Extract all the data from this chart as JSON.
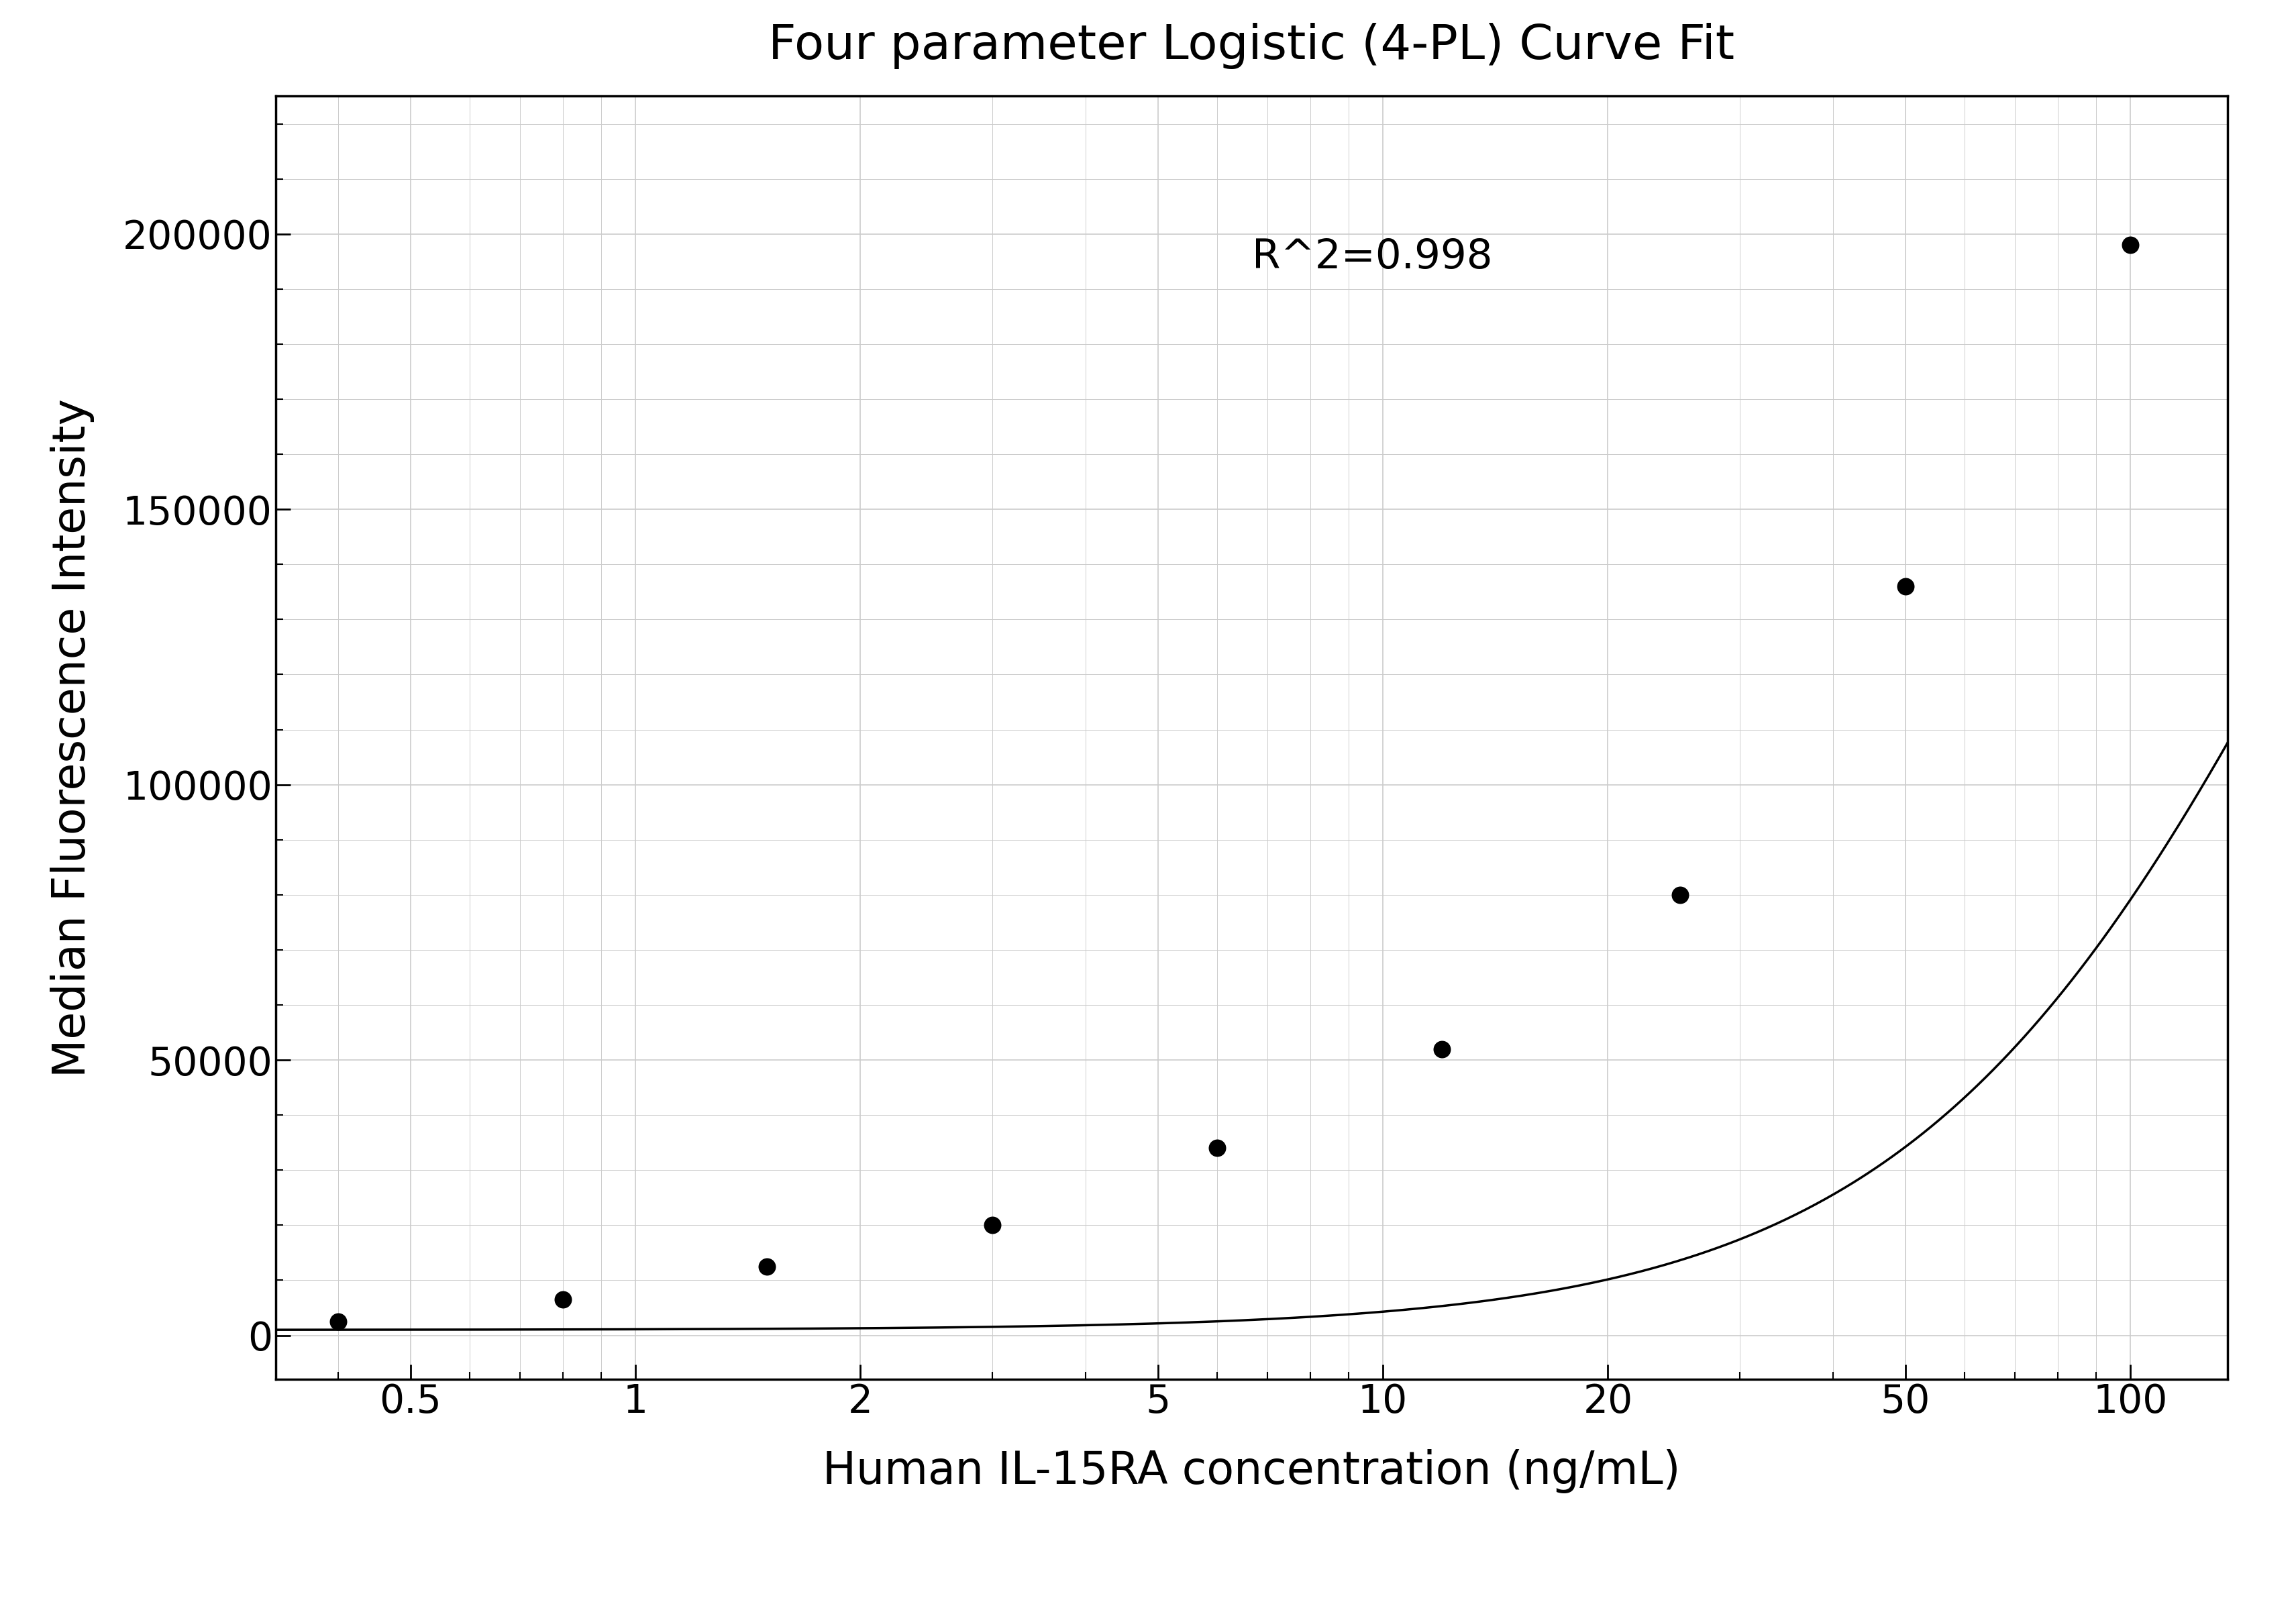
{
  "title": "Four parameter Logistic (4-PL) Curve Fit",
  "xlabel": "Human IL-15RA concentration (ng/mL)",
  "ylabel": "Median Fluorescence Intensity",
  "r_squared": "R^2=0.998",
  "data_x": [
    0.4,
    0.8,
    1.5,
    3.0,
    6.0,
    12.0,
    25.0,
    50.0,
    100.0
  ],
  "data_y": [
    2500,
    6500,
    12500,
    20000,
    34000,
    52000,
    80000,
    136000,
    198000
  ],
  "xlim_log": [
    0.33,
    135
  ],
  "ylim": [
    -8000,
    225000
  ],
  "xticks": [
    0.5,
    1,
    2,
    5,
    10,
    20,
    50,
    100
  ],
  "yticks": [
    0,
    50000,
    100000,
    150000,
    200000
  ],
  "background_color": "#ffffff",
  "grid_color": "#cccccc",
  "line_color": "#000000",
  "dot_color": "#000000",
  "title_fontsize": 52,
  "label_fontsize": 48,
  "tick_fontsize": 42,
  "annot_fontsize": 44
}
